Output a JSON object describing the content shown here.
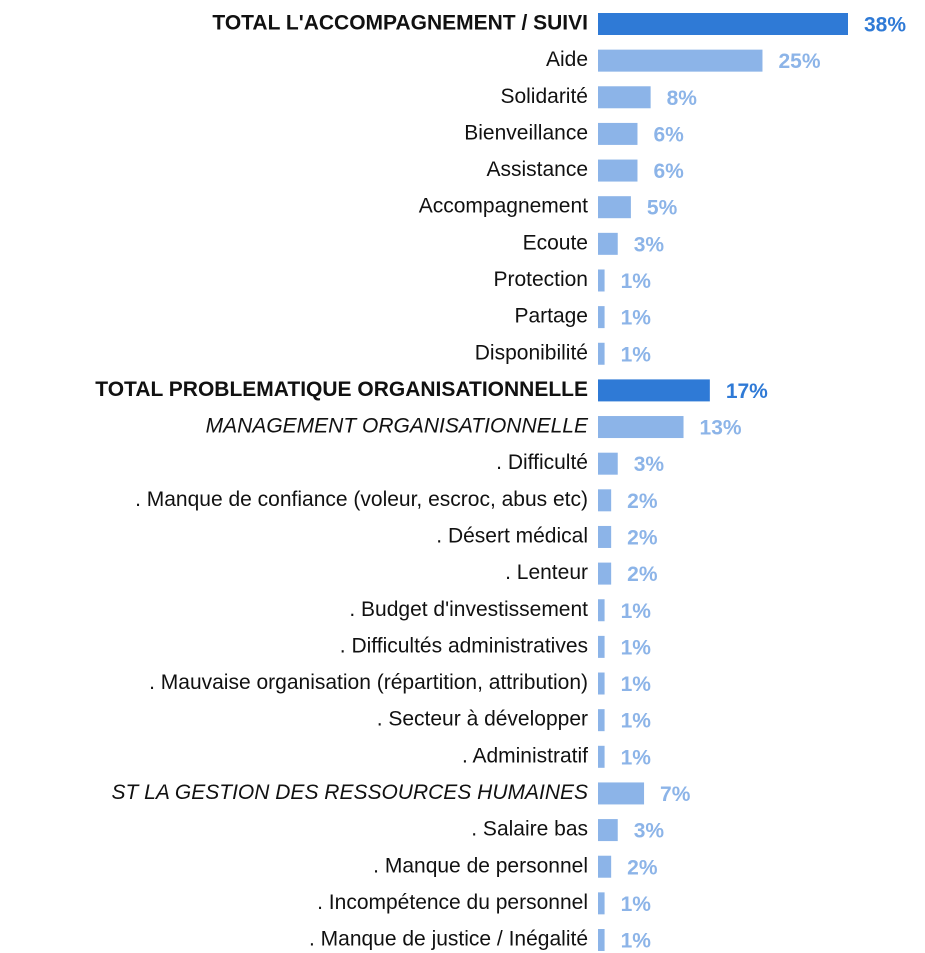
{
  "chart_data": {
    "type": "bar",
    "categories": [
      "TOTAL L'ACCOMPAGNEMENT / SUIVI",
      "Aide",
      "Solidarité",
      "Bienveillance",
      "Assistance",
      "Accompagnement",
      "Ecoute",
      "Protection",
      "Partage",
      "Disponibilité",
      "TOTAL PROBLEMATIQUE ORGANISATIONNELLE",
      "MANAGEMENT ORGANISATIONNELLE",
      ". Difficulté",
      ". Manque de confiance (voleur, escroc, abus etc)",
      ". Désert médical",
      ". Lenteur",
      ". Budget d'investissement",
      ". Difficultés administratives",
      ". Mauvaise organisation (répartition, attribution)",
      ". Secteur à développer",
      ". Administratif",
      "ST LA GESTION DES RESSOURCES HUMAINES",
      ". Salaire bas",
      ". Manque de personnel",
      ". Incompétence du personnel",
      ". Manque de justice / Inégalité"
    ],
    "values": [
      38,
      25,
      8,
      6,
      6,
      5,
      3,
      1,
      1,
      1,
      17,
      13,
      3,
      2,
      2,
      2,
      1,
      1,
      1,
      1,
      1,
      7,
      3,
      2,
      1,
      1
    ],
    "value_labels": [
      "38%",
      "25%",
      "8%",
      "6%",
      "6%",
      "5%",
      "3%",
      "1%",
      "1%",
      "1%",
      "17%",
      "13%",
      "3%",
      "2%",
      "2%",
      "2%",
      "1%",
      "1%",
      "1%",
      "1%",
      "1%",
      "7%",
      "3%",
      "2%",
      "1%",
      "1%"
    ],
    "colors": [
      "#2f7ad6",
      "#8cb4e8",
      "#8cb4e8",
      "#8cb4e8",
      "#8cb4e8",
      "#8cb4e8",
      "#8cb4e8",
      "#8cb4e8",
      "#8cb4e8",
      "#8cb4e8",
      "#2f7ad6",
      "#8cb4e8",
      "#8cb4e8",
      "#8cb4e8",
      "#8cb4e8",
      "#8cb4e8",
      "#8cb4e8",
      "#8cb4e8",
      "#8cb4e8",
      "#8cb4e8",
      "#8cb4e8",
      "#8cb4e8",
      "#8cb4e8",
      "#8cb4e8",
      "#8cb4e8",
      "#8cb4e8"
    ],
    "label_styles": [
      "bold",
      "normal",
      "normal",
      "normal",
      "normal",
      "normal",
      "normal",
      "normal",
      "normal",
      "normal",
      "bold",
      "italic",
      "normal",
      "normal",
      "normal",
      "normal",
      "normal",
      "normal",
      "normal",
      "normal",
      "normal",
      "italic",
      "normal",
      "normal",
      "normal",
      "normal"
    ]
  }
}
